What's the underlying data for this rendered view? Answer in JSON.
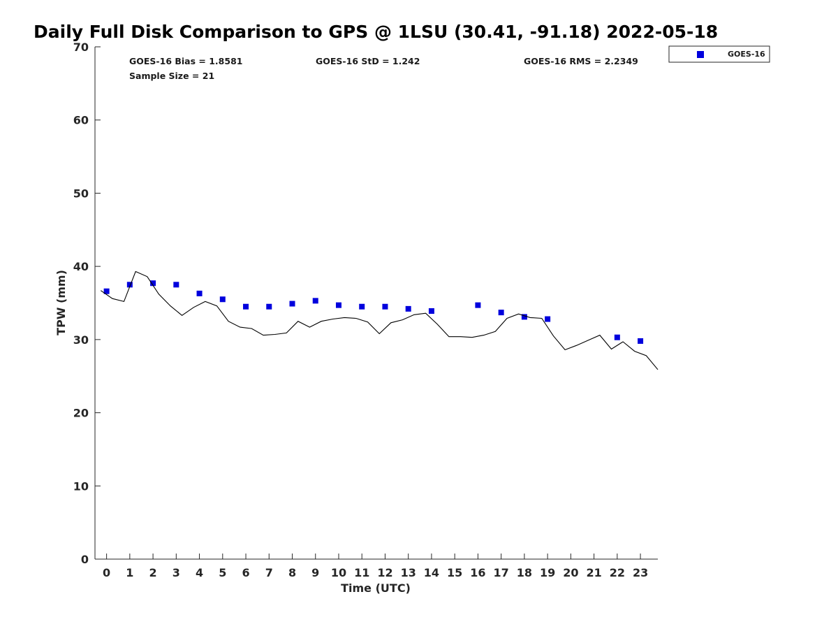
{
  "chart_data": {
    "type": "scatter",
    "title": "Daily Full Disk Comparison to GPS @ 1LSU (30.41, -91.18) 2022-05-18",
    "xlabel": "Time (UTC)",
    "ylabel": "TPW (mm)",
    "xlim": [
      -0.5,
      23.75
    ],
    "ylim": [
      0,
      70
    ],
    "xticks": [
      0,
      1,
      2,
      3,
      4,
      5,
      6,
      7,
      8,
      9,
      10,
      11,
      12,
      13,
      14,
      15,
      16,
      17,
      18,
      19,
      20,
      21,
      22,
      23
    ],
    "yticks": [
      0,
      10,
      20,
      30,
      40,
      50,
      60,
      70
    ],
    "grid": false,
    "legend_position": "outside-top-right",
    "stats": {
      "bias": "GOES-16 Bias = 1.8581",
      "std": "GOES-16 StD = 1.242",
      "rms": "GOES-16 RMS = 2.2349",
      "sample": "Sample Size = 21"
    },
    "series": [
      {
        "name": "GOES-16",
        "kind": "scatter",
        "color": "#0000dd",
        "marker": "square",
        "x": [
          0,
          1,
          2,
          3,
          4,
          5,
          6,
          7,
          8,
          9,
          10,
          11,
          12,
          13,
          14,
          16,
          17,
          18,
          19,
          22,
          23
        ],
        "y": [
          36.6,
          37.5,
          37.7,
          37.5,
          36.3,
          35.5,
          34.5,
          34.5,
          34.9,
          35.3,
          34.7,
          34.5,
          34.5,
          34.2,
          33.9,
          34.7,
          33.7,
          33.1,
          32.8,
          30.3,
          29.8
        ]
      },
      {
        "kind": "line",
        "color": "#000000",
        "x": [
          -0.25,
          0.25,
          0.75,
          1.25,
          1.75,
          2.25,
          2.75,
          3.25,
          3.75,
          4.25,
          4.75,
          5.25,
          5.75,
          6.25,
          6.75,
          7.25,
          7.75,
          8.25,
          8.75,
          9.25,
          9.75,
          10.25,
          10.75,
          11.25,
          11.75,
          12.25,
          12.75,
          13.25,
          13.75,
          14.25,
          14.75,
          15.25,
          15.75,
          16.25,
          16.75,
          17.25,
          17.75,
          18.25,
          18.75,
          19.25,
          19.75,
          20.25,
          20.75,
          21.25,
          21.75,
          22.25,
          22.75,
          23.25,
          23.75
        ],
        "y": [
          36.7,
          35.6,
          35.2,
          39.3,
          38.6,
          36.2,
          34.6,
          33.3,
          34.4,
          35.2,
          34.6,
          32.5,
          31.7,
          31.5,
          30.6,
          30.7,
          30.9,
          32.5,
          31.7,
          32.5,
          32.8,
          33.0,
          32.9,
          32.4,
          30.8,
          32.3,
          32.7,
          33.4,
          33.6,
          32.1,
          30.4,
          30.4,
          30.3,
          30.6,
          31.1,
          32.9,
          33.5,
          33.0,
          32.9,
          30.5,
          28.6,
          29.2,
          29.9,
          30.6,
          28.7,
          29.7,
          28.4,
          27.8,
          25.9
        ]
      }
    ]
  }
}
